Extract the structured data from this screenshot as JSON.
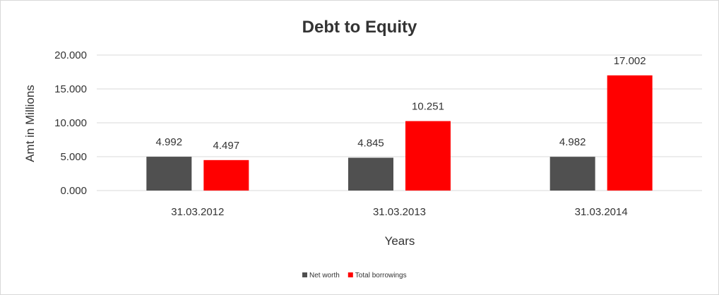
{
  "chart_data": {
    "type": "bar",
    "title": "Debt to Equity",
    "xlabel": "Years",
    "ylabel": "Amt in Millions",
    "categories": [
      "31.03.2012",
      "31.03.2013",
      "31.03.2014"
    ],
    "series": [
      {
        "name": "Net worth",
        "color": "#505050",
        "values": [
          4.992,
          4.845,
          4.982
        ],
        "labels": [
          "4.992",
          "4.845",
          "4.982"
        ]
      },
      {
        "name": "Total borrowings",
        "color": "#ff0000",
        "values": [
          4.497,
          10.251,
          17.002
        ],
        "labels": [
          "4.497",
          "10.251",
          "17.002"
        ]
      }
    ],
    "ylim": [
      0,
      20
    ],
    "yticks": [
      0,
      5,
      10,
      15,
      20
    ],
    "ytick_labels": [
      "0.000",
      "5.000",
      "10.000",
      "15.000",
      "20.000"
    ],
    "grid": true,
    "legend_position": "bottom"
  }
}
